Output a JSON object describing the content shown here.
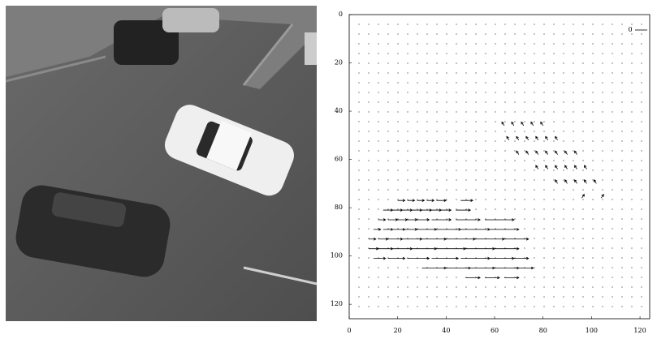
{
  "chart_data": {
    "type": "quiver",
    "key_label": "0",
    "color": "#000000",
    "xlim": [
      0,
      124
    ],
    "ylim": [
      0,
      126
    ],
    "y_inverted": true,
    "xticks": [
      0,
      20,
      40,
      60,
      80,
      100,
      120
    ],
    "yticks": [
      0,
      20,
      40,
      60,
      80,
      100,
      120
    ],
    "x": [
      20,
      24,
      28,
      32,
      36,
      46,
      14,
      18,
      22,
      26,
      30,
      34,
      38,
      44,
      12,
      16,
      20,
      24,
      28,
      34,
      44,
      56,
      10,
      14,
      18,
      22,
      28,
      36,
      46,
      58,
      8,
      12,
      16,
      22,
      30,
      40,
      52,
      64,
      8,
      12,
      18,
      26,
      36,
      48,
      60,
      10,
      16,
      24,
      34,
      46,
      58,
      68,
      30,
      40,
      50,
      60,
      70,
      48,
      56,
      64,
      64,
      68,
      72,
      76,
      80,
      66,
      70,
      74,
      78,
      82,
      86,
      70,
      74,
      78,
      82,
      86,
      90,
      94,
      78,
      82,
      86,
      90,
      94,
      98,
      86,
      90,
      94,
      98,
      102,
      96,
      104
    ],
    "y": [
      77,
      77,
      77,
      77,
      77,
      77,
      81,
      81,
      81,
      81,
      81,
      81,
      81,
      81,
      85,
      85,
      85,
      85,
      85,
      85,
      85,
      85,
      89,
      89,
      89,
      89,
      89,
      89,
      89,
      89,
      93,
      93,
      93,
      93,
      93,
      93,
      93,
      93,
      97,
      97,
      97,
      97,
      97,
      97,
      97,
      101,
      101,
      101,
      101,
      101,
      101,
      101,
      105,
      105,
      105,
      105,
      105,
      109,
      109,
      109,
      46,
      46,
      46,
      46,
      46,
      52,
      52,
      52,
      52,
      52,
      52,
      58,
      58,
      58,
      58,
      58,
      58,
      58,
      64,
      64,
      64,
      64,
      64,
      64,
      70,
      70,
      70,
      70,
      70,
      76,
      76
    ],
    "u": [
      3,
      3,
      3,
      3,
      4,
      5,
      4,
      4,
      4,
      4,
      4,
      4,
      4,
      6,
      3,
      4,
      4,
      4,
      5,
      8,
      10,
      12,
      3,
      4,
      5,
      6,
      8,
      10,
      12,
      12,
      3,
      4,
      6,
      8,
      10,
      12,
      12,
      10,
      4,
      6,
      8,
      10,
      12,
      12,
      10,
      5,
      7,
      9,
      11,
      12,
      10,
      6,
      10,
      10,
      10,
      10,
      6,
      6,
      6,
      6,
      -1,
      -1,
      -1,
      -1,
      -1,
      -1,
      -1,
      -1,
      -1,
      -1,
      -1,
      -1,
      -1,
      -1,
      -1,
      -1,
      -1,
      -1,
      -1,
      -1,
      -1,
      -1,
      -1,
      -1,
      -1,
      -1,
      -1,
      -1,
      -1,
      1,
      1
    ],
    "v": [
      0,
      0,
      0,
      0,
      0,
      0,
      0,
      0,
      0,
      0,
      0,
      0,
      0,
      0,
      0,
      0,
      0,
      0,
      0,
      0,
      0,
      0,
      0,
      0,
      0,
      0,
      0,
      0,
      0,
      0,
      0,
      0,
      0,
      0,
      0,
      0,
      0,
      0,
      0,
      0,
      0,
      0,
      0,
      0,
      0,
      0,
      0,
      0,
      0,
      0,
      0,
      0,
      0,
      0,
      0,
      0,
      0,
      0,
      0,
      0,
      -1.5,
      -1.5,
      -1.5,
      -1.5,
      -1.5,
      -1.5,
      -1.5,
      -1.5,
      -1.5,
      -1.5,
      -1.5,
      -1.5,
      -1.5,
      -1.5,
      -1.5,
      -1.5,
      -1.5,
      -1.5,
      -1.5,
      -1.5,
      -1.5,
      -1.5,
      -1.5,
      -1.5,
      -1.5,
      -1.5,
      -1.5,
      -1.5,
      -1.5,
      -1.5,
      -1.5
    ]
  }
}
